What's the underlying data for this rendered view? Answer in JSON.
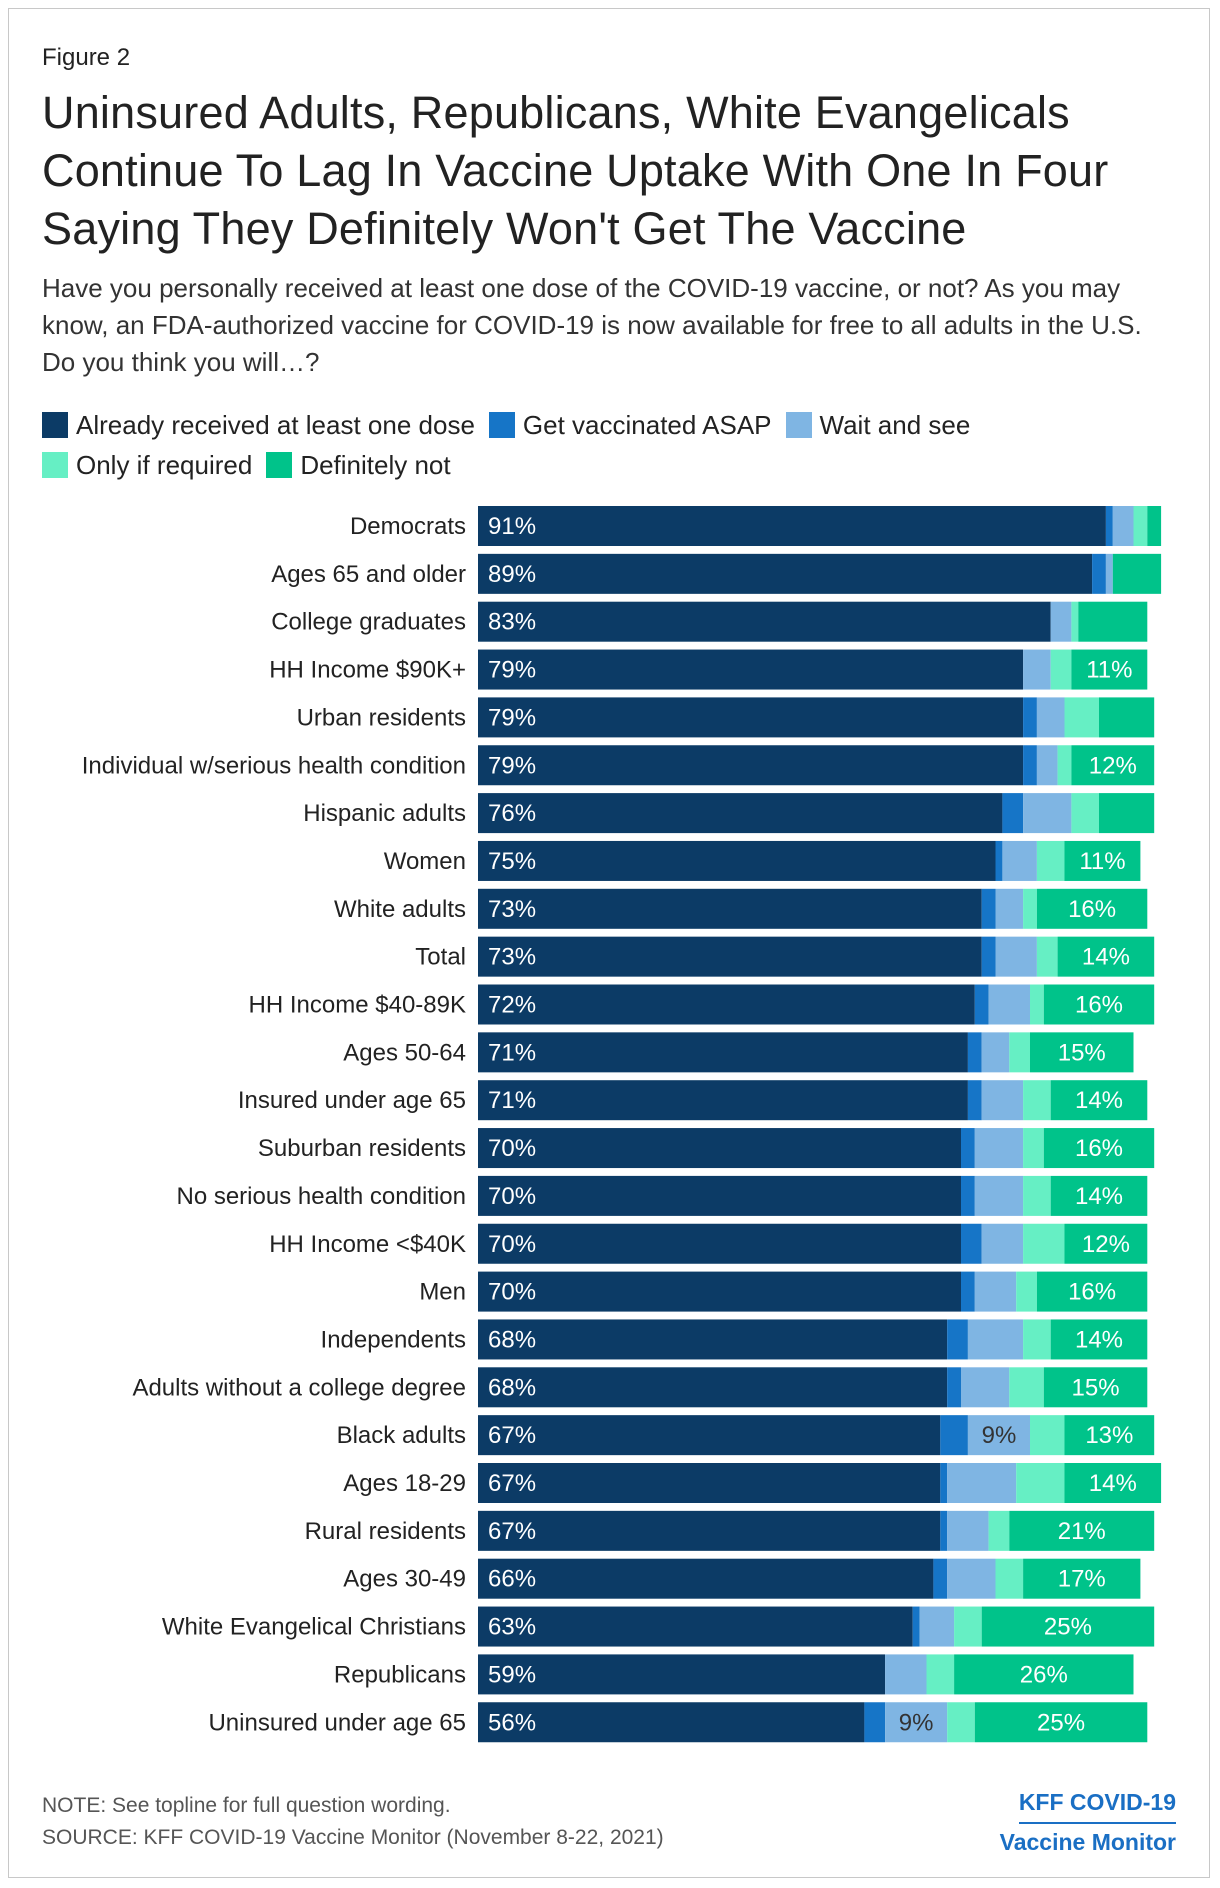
{
  "figure_label": "Figure 2",
  "title": "Uninsured Adults, Republicans, White Evangelicals Continue To Lag In Vaccine Uptake With One In Four Saying They Definitely Won't Get The Vaccine",
  "subtitle": "Have you personally received at least one dose of the COVID-19 vaccine, or not? As you may know, an FDA-authorized vaccine for COVID-19 is now available for free to all adults in the U.S. Do you think you will…?",
  "note": "NOTE: See topline for full question wording.",
  "source": "SOURCE: KFF COVID-19 Vaccine Monitor (November 8-22, 2021)",
  "brand": {
    "line1": "KFF COVID-19",
    "line2": "Vaccine Monitor",
    "color": "#1a6fc4"
  },
  "chart_data": {
    "type": "bar",
    "orientation": "horizontal",
    "stacked": true,
    "categories": [
      "Democrats",
      "Ages 65 and older",
      "College graduates",
      "HH Income $90K+",
      "Urban residents",
      "Individual w/serious health condition",
      "Hispanic adults",
      "Women",
      "White adults",
      "Total",
      "HH Income $40-89K",
      "Ages 50-64",
      "Insured under age 65",
      "Suburban residents",
      "No serious health condition",
      "HH Income <$40K",
      "Men",
      "Independents",
      "Adults without a college degree",
      "Black adults",
      "Ages 18-29",
      "Rural residents",
      "Ages 30-49",
      "White Evangelical Christians",
      "Republicans",
      "Uninsured under age 65"
    ],
    "series": [
      {
        "name": "Already received at least one dose",
        "color": "#0c3b66",
        "values": [
          91,
          89,
          83,
          79,
          79,
          79,
          76,
          75,
          73,
          73,
          72,
          71,
          71,
          70,
          70,
          70,
          70,
          68,
          68,
          67,
          67,
          67,
          66,
          63,
          59,
          56
        ],
        "labels": [
          "91%",
          "89%",
          "83%",
          "79%",
          "79%",
          "79%",
          "76%",
          "75%",
          "73%",
          "73%",
          "72%",
          "71%",
          "71%",
          "70%",
          "70%",
          "70%",
          "70%",
          "68%",
          "68%",
          "67%",
          "67%",
          "67%",
          "66%",
          "63%",
          "59%",
          "56%"
        ]
      },
      {
        "name": "Get vaccinated ASAP",
        "color": "#1675c7",
        "values": [
          1,
          2,
          0,
          0,
          2,
          2,
          3,
          1,
          2,
          2,
          2,
          2,
          2,
          2,
          2,
          3,
          2,
          3,
          2,
          4,
          1,
          1,
          2,
          1,
          0,
          3
        ],
        "labels": [
          "",
          "",
          "",
          "",
          "",
          "",
          "",
          "",
          "",
          "",
          "",
          "",
          "",
          "",
          "",
          "",
          "",
          "",
          "",
          "",
          "",
          "",
          "",
          "",
          "",
          ""
        ]
      },
      {
        "name": "Wait and see",
        "color": "#7fb5e3",
        "values": [
          3,
          1,
          3,
          4,
          4,
          3,
          7,
          5,
          4,
          6,
          6,
          4,
          6,
          7,
          7,
          6,
          6,
          8,
          7,
          9,
          10,
          6,
          7,
          5,
          6,
          9
        ],
        "labels": [
          "",
          "",
          "",
          "",
          "",
          "",
          "",
          "",
          "",
          "",
          "",
          "",
          "",
          "",
          "",
          "",
          "",
          "",
          "",
          "9%",
          "",
          "",
          "",
          "",
          "",
          "9%"
        ]
      },
      {
        "name": "Only if required",
        "color": "#66efc4",
        "values": [
          2,
          0,
          1,
          3,
          5,
          2,
          4,
          4,
          2,
          3,
          2,
          3,
          4,
          3,
          4,
          6,
          3,
          4,
          5,
          5,
          7,
          3,
          4,
          4,
          4,
          4
        ],
        "labels": [
          "",
          "",
          "",
          "",
          "",
          "",
          "",
          "",
          "",
          "",
          "",
          "",
          "",
          "",
          "",
          "",
          "",
          "",
          "",
          "",
          "",
          "",
          "",
          "",
          "",
          ""
        ]
      },
      {
        "name": "Definitely not",
        "color": "#00c38a",
        "values": [
          2,
          7,
          10,
          11,
          8,
          12,
          8,
          11,
          16,
          14,
          16,
          15,
          14,
          16,
          14,
          12,
          16,
          14,
          15,
          13,
          14,
          21,
          17,
          25,
          26,
          25
        ],
        "labels": [
          "",
          "",
          "",
          "11%",
          "",
          "12%",
          "",
          "11%",
          "16%",
          "14%",
          "16%",
          "15%",
          "14%",
          "16%",
          "14%",
          "12%",
          "16%",
          "14%",
          "15%",
          "13%",
          "14%",
          "21%",
          "17%",
          "25%",
          "26%",
          "25%"
        ]
      }
    ],
    "xlim": [
      0,
      100
    ],
    "legend_position": "top",
    "grid": false
  }
}
